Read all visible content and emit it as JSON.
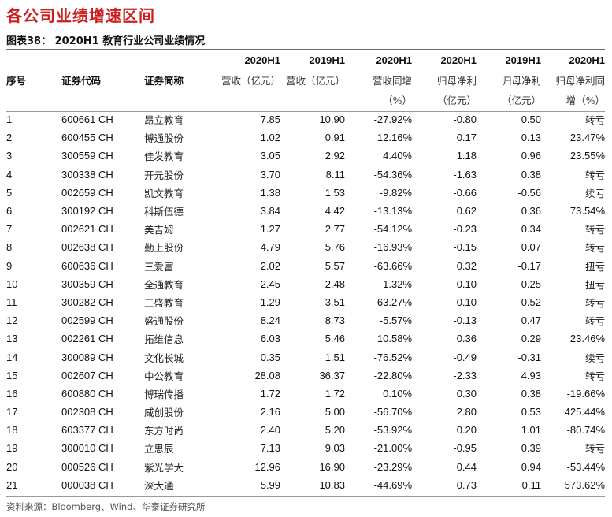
{
  "page_title": "各公司业绩增速区间",
  "figure_caption": "图表38：  2020H1 教育行业公司业绩情况",
  "columns": [
    {
      "key": "no",
      "l1": "",
      "l2": "序号",
      "l3": ""
    },
    {
      "key": "code",
      "l1": "",
      "l2": "证券代码",
      "l3": ""
    },
    {
      "key": "name",
      "l1": "",
      "l2": "证券简称",
      "l3": ""
    },
    {
      "key": "rev20",
      "l1": "2020H1",
      "l2": "营收（亿元）",
      "l3": ""
    },
    {
      "key": "rev19",
      "l1": "2019H1",
      "l2": "营收（亿元）",
      "l3": ""
    },
    {
      "key": "rev_yoy",
      "l1": "2020H1",
      "l2": "营收同增",
      "l3": "（%）"
    },
    {
      "key": "np20",
      "l1": "2020H1",
      "l2": "归母净利",
      "l3": "（亿元）"
    },
    {
      "key": "np19",
      "l1": "2019H1",
      "l2": "归母净利",
      "l3": "（亿元）"
    },
    {
      "key": "np_yoy",
      "l1": "2020H1",
      "l2": "归母净利同",
      "l3": "增（%）"
    }
  ],
  "rows": [
    {
      "no": "1",
      "code": "600661 CH",
      "name": "昂立教育",
      "rev20": "7.85",
      "rev19": "10.90",
      "rev_yoy": "-27.92%",
      "np20": "-0.80",
      "np19": "0.50",
      "np_yoy": "转亏"
    },
    {
      "no": "2",
      "code": "600455 CH",
      "name": "博通股份",
      "rev20": "1.02",
      "rev19": "0.91",
      "rev_yoy": "12.16%",
      "np20": "0.17",
      "np19": "0.13",
      "np_yoy": "23.47%"
    },
    {
      "no": "3",
      "code": "300559 CH",
      "name": "佳发教育",
      "rev20": "3.05",
      "rev19": "2.92",
      "rev_yoy": "4.40%",
      "np20": "1.18",
      "np19": "0.96",
      "np_yoy": "23.55%"
    },
    {
      "no": "4",
      "code": "300338 CH",
      "name": "开元股份",
      "rev20": "3.70",
      "rev19": "8.11",
      "rev_yoy": "-54.36%",
      "np20": "-1.63",
      "np19": "0.38",
      "np_yoy": "转亏"
    },
    {
      "no": "5",
      "code": "002659 CH",
      "name": "凯文教育",
      "rev20": "1.38",
      "rev19": "1.53",
      "rev_yoy": "-9.82%",
      "np20": "-0.66",
      "np19": "-0.56",
      "np_yoy": "续亏"
    },
    {
      "no": "6",
      "code": "300192 CH",
      "name": "科斯伍德",
      "rev20": "3.84",
      "rev19": "4.42",
      "rev_yoy": "-13.13%",
      "np20": "0.62",
      "np19": "0.36",
      "np_yoy": "73.54%"
    },
    {
      "no": "7",
      "code": "002621 CH",
      "name": "美吉姆",
      "rev20": "1.27",
      "rev19": "2.77",
      "rev_yoy": "-54.12%",
      "np20": "-0.23",
      "np19": "0.34",
      "np_yoy": "转亏"
    },
    {
      "no": "8",
      "code": "002638 CH",
      "name": "勤上股份",
      "rev20": "4.79",
      "rev19": "5.76",
      "rev_yoy": "-16.93%",
      "np20": "-0.15",
      "np19": "0.07",
      "np_yoy": "转亏"
    },
    {
      "no": "9",
      "code": "600636 CH",
      "name": "三爱富",
      "rev20": "2.02",
      "rev19": "5.57",
      "rev_yoy": "-63.66%",
      "np20": "0.32",
      "np19": "-0.17",
      "np_yoy": "扭亏"
    },
    {
      "no": "10",
      "code": "300359 CH",
      "name": "全通教育",
      "rev20": "2.45",
      "rev19": "2.48",
      "rev_yoy": "-1.32%",
      "np20": "0.10",
      "np19": "-0.25",
      "np_yoy": "扭亏"
    },
    {
      "no": "11",
      "code": "300282 CH",
      "name": "三盛教育",
      "rev20": "1.29",
      "rev19": "3.51",
      "rev_yoy": "-63.27%",
      "np20": "-0.10",
      "np19": "0.52",
      "np_yoy": "转亏"
    },
    {
      "no": "12",
      "code": "002599 CH",
      "name": "盛通股份",
      "rev20": "8.24",
      "rev19": "8.73",
      "rev_yoy": "-5.57%",
      "np20": "-0.13",
      "np19": "0.47",
      "np_yoy": "转亏"
    },
    {
      "no": "13",
      "code": "002261 CH",
      "name": "拓维信息",
      "rev20": "6.03",
      "rev19": "5.46",
      "rev_yoy": "10.58%",
      "np20": "0.36",
      "np19": "0.29",
      "np_yoy": "23.46%"
    },
    {
      "no": "14",
      "code": "300089 CH",
      "name": "文化长城",
      "rev20": "0.35",
      "rev19": "1.51",
      "rev_yoy": "-76.52%",
      "np20": "-0.49",
      "np19": "-0.31",
      "np_yoy": "续亏"
    },
    {
      "no": "15",
      "code": "002607 CH",
      "name": "中公教育",
      "rev20": "28.08",
      "rev19": "36.37",
      "rev_yoy": "-22.80%",
      "np20": "-2.33",
      "np19": "4.93",
      "np_yoy": "转亏"
    },
    {
      "no": "16",
      "code": "600880 CH",
      "name": "博瑞传播",
      "rev20": "1.72",
      "rev19": "1.72",
      "rev_yoy": "0.10%",
      "np20": "0.30",
      "np19": "0.38",
      "np_yoy": "-19.66%"
    },
    {
      "no": "17",
      "code": "002308 CH",
      "name": "威创股份",
      "rev20": "2.16",
      "rev19": "5.00",
      "rev_yoy": "-56.70%",
      "np20": "2.80",
      "np19": "0.53",
      "np_yoy": "425.44%"
    },
    {
      "no": "18",
      "code": "603377 CH",
      "name": "东方时尚",
      "rev20": "2.40",
      "rev19": "5.20",
      "rev_yoy": "-53.92%",
      "np20": "0.20",
      "np19": "1.01",
      "np_yoy": "-80.74%"
    },
    {
      "no": "19",
      "code": "300010 CH",
      "name": "立思辰",
      "rev20": "7.13",
      "rev19": "9.03",
      "rev_yoy": "-21.00%",
      "np20": "-0.95",
      "np19": "0.39",
      "np_yoy": "转亏"
    },
    {
      "no": "20",
      "code": "000526 CH",
      "name": "紫光学大",
      "rev20": "12.96",
      "rev19": "16.90",
      "rev_yoy": "-23.29%",
      "np20": "0.44",
      "np19": "0.94",
      "np_yoy": "-53.44%"
    },
    {
      "no": "21",
      "code": "000038 CH",
      "name": "深大通",
      "rev20": "5.99",
      "rev19": "10.83",
      "rev_yoy": "-44.69%",
      "np20": "0.73",
      "np19": "0.11",
      "np_yoy": "573.62%"
    }
  ],
  "source": "资料来源：Bloomberg、Wind、华泰证券研究所"
}
